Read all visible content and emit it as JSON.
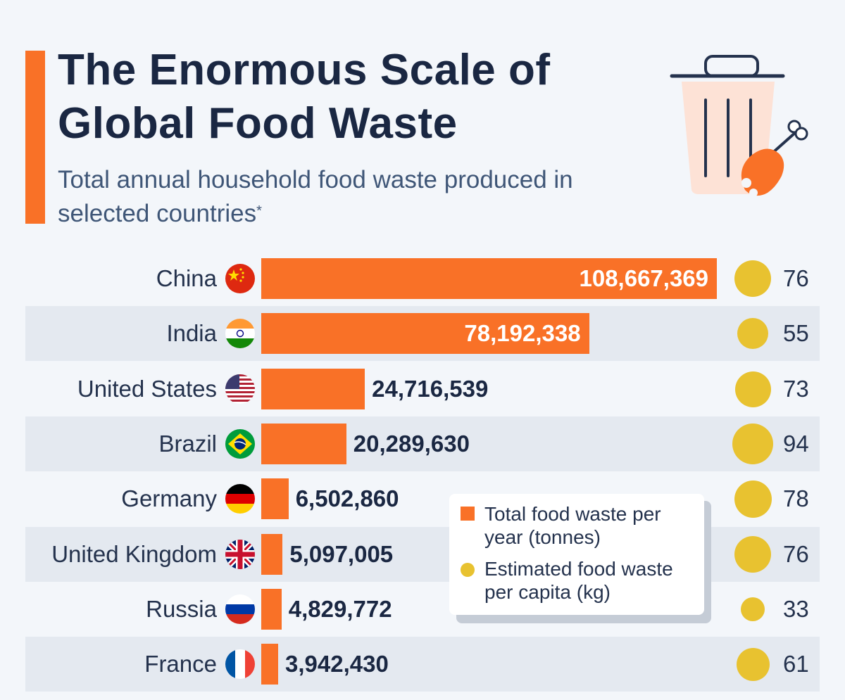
{
  "header": {
    "title": "The Enormous Scale of Global Food Waste",
    "subtitle": "Total annual household food waste produced in selected countries",
    "subtitle_mark": "*"
  },
  "legend": {
    "bars_label": "Total food waste per year (tonnes)",
    "dots_label": "Estimated food waste per capita (kg)"
  },
  "colors": {
    "bar": "#f97127",
    "dot": "#e8c230",
    "title": "#1a2742"
  },
  "icons": [
    "trash-can-icon",
    "chicken-drumstick-icon"
  ],
  "chart_data": {
    "type": "bar",
    "orientation": "horizontal",
    "categories": [
      "China",
      "India",
      "United States",
      "Brazil",
      "Germany",
      "United Kingdom",
      "Russia",
      "France"
    ],
    "series": [
      {
        "name": "Total food waste per year (tonnes)",
        "values": [
          108667369,
          78192338,
          24716539,
          20289630,
          6502860,
          5097005,
          4829772,
          3942430
        ],
        "labels": [
          "108,667,369",
          "78,192,338",
          "24,716,539",
          "20,289,630",
          "6,502,860",
          "5,097,005",
          "4,829,772",
          "3,942,430"
        ]
      },
      {
        "name": "Estimated food waste per capita (kg)",
        "values": [
          76,
          55,
          73,
          94,
          78,
          76,
          33,
          61
        ]
      }
    ],
    "flags": [
      "china",
      "india",
      "united-states",
      "brazil",
      "germany",
      "united-kingdom",
      "russia",
      "france"
    ],
    "legend_position": "bottom-center",
    "grid": false
  }
}
